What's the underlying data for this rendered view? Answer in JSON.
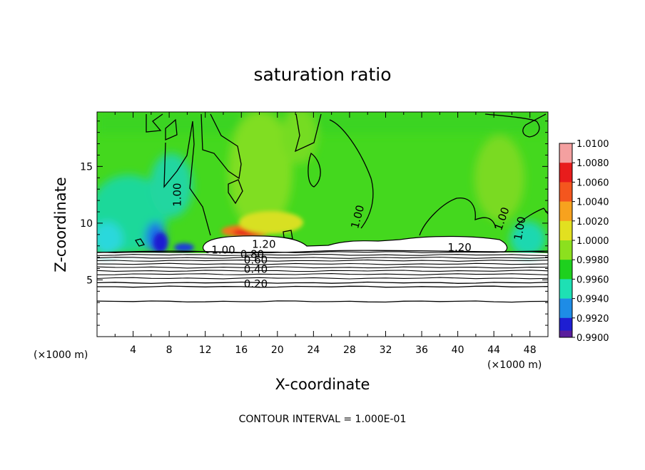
{
  "chart_data": {
    "type": "heatmap",
    "title": "saturation ratio",
    "xlabel": "X-coordinate",
    "ylabel": "Z-coordinate",
    "x_unit_left": "(×1000 m)",
    "x_unit_right": "(×1000 m)",
    "xlim": [
      0,
      50
    ],
    "ylim": [
      0,
      19.8
    ],
    "x_ticks": [
      {
        "value": 4,
        "label": "4"
      },
      {
        "value": 8,
        "label": "8"
      },
      {
        "value": 12,
        "label": "12"
      },
      {
        "value": 16,
        "label": "16"
      },
      {
        "value": 20,
        "label": "20"
      },
      {
        "value": 24,
        "label": "24"
      },
      {
        "value": 28,
        "label": "28"
      },
      {
        "value": 32,
        "label": "32"
      },
      {
        "value": 36,
        "label": "36"
      },
      {
        "value": 40,
        "label": "40"
      },
      {
        "value": 44,
        "label": "44"
      },
      {
        "value": 48,
        "label": "48"
      }
    ],
    "y_ticks": [
      {
        "value": 5,
        "label": "5"
      },
      {
        "value": 10,
        "label": "10"
      },
      {
        "value": 15,
        "label": "15"
      }
    ],
    "colorbar": {
      "levels": [
        {
          "value": 1.01,
          "label": "1.0100",
          "color": "#f4a0a0"
        },
        {
          "value": 1.008,
          "label": "1.0080",
          "color": "#e81c1c"
        },
        {
          "value": 1.006,
          "label": "1.0060",
          "color": "#f4561e"
        },
        {
          "value": 1.004,
          "label": "1.0040",
          "color": "#f7a21e"
        },
        {
          "value": 1.002,
          "label": "1.0020",
          "color": "#e2e020"
        },
        {
          "value": 1.0,
          "label": "1.0000",
          "color": "#8ce01e"
        },
        {
          "value": 0.998,
          "label": "0.9980",
          "color": "#1ed01e"
        },
        {
          "value": 0.996,
          "label": "0.9960",
          "color": "#1ee0b4"
        },
        {
          "value": 0.994,
          "label": "0.9940",
          "color": "#1e8ce6"
        },
        {
          "value": 0.992,
          "label": "0.9920",
          "color": "#1e1ed2"
        },
        {
          "value": 0.99,
          "label": "0.9900",
          "color": "#5a1e9c"
        }
      ]
    },
    "contour_labels": [
      {
        "text": "1.00",
        "x": 9.2,
        "z": 12.5,
        "rotate": -90
      },
      {
        "text": "1.00",
        "x": 29.2,
        "z": 10.5,
        "rotate": -75
      },
      {
        "text": "1.00",
        "x": 45.2,
        "z": 10.3,
        "rotate": -70
      },
      {
        "text": "1.00",
        "x": 47.2,
        "z": 9.5,
        "rotate": -80
      },
      {
        "text": "1.20",
        "x": 18.5,
        "z": 7.9,
        "rotate": 0
      },
      {
        "text": "1.20",
        "x": 40.2,
        "z": 7.6,
        "rotate": 0
      },
      {
        "text": "1.00",
        "x": 14.0,
        "z": 7.4,
        "rotate": 0
      },
      {
        "text": "0.80",
        "x": 17.2,
        "z": 7.0,
        "rotate": 0
      },
      {
        "text": "0.60",
        "x": 17.6,
        "z": 6.5,
        "rotate": 0
      },
      {
        "text": "0.40",
        "x": 17.6,
        "z": 5.7,
        "rotate": 0
      },
      {
        "text": "0.20",
        "x": 17.6,
        "z": 4.4,
        "rotate": 0
      }
    ],
    "contour_levels_below": [
      7.45,
      7.2,
      6.95,
      6.7,
      6.4,
      6.1,
      5.8,
      5.5,
      5.15,
      4.75,
      4.4,
      3.1
    ],
    "footer": "CONTOUR INTERVAL = 1.000E-01"
  }
}
